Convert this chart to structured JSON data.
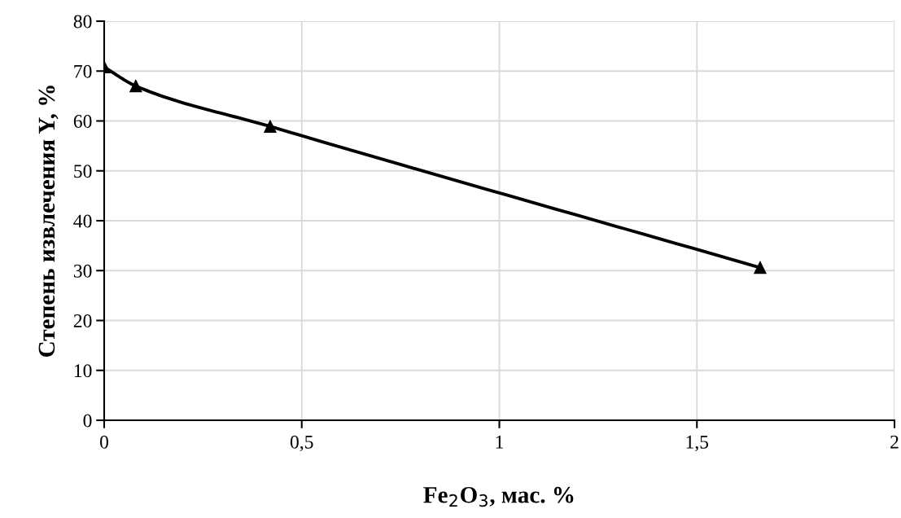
{
  "chart_data": {
    "type": "line",
    "xlabel": "Fe$_{2}$O$_{3}$, мас. %",
    "ylabel": "Степень извлечения Y, %",
    "x": [
      0,
      0.08,
      0.42,
      1.66
    ],
    "series": [
      {
        "color": "#000000",
        "values": [
          70.8,
          67,
          58.9,
          30.6
        ]
      }
    ],
    "xlim": [
      0,
      2
    ],
    "xticks": [
      0,
      {
        "value": 0.5,
        "label": "0,5"
      },
      1,
      {
        "value": 1.5,
        "label": "1,5"
      },
      2
    ],
    "ylim": [
      0,
      80
    ],
    "yticks": [
      0,
      10,
      20,
      30,
      40,
      50,
      60,
      70,
      80
    ],
    "grid": true,
    "marker": "triangle",
    "line_style": "solid"
  }
}
